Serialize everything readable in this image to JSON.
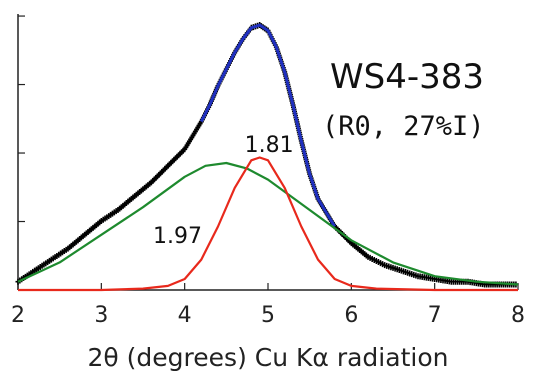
{
  "chart_data": {
    "type": "line",
    "title": "WS4-383",
    "subtitle": "(R0, 27%I)",
    "xlabel": "2θ (degrees) Cu Kα radiation",
    "ylabel": "",
    "xlim": [
      2,
      8
    ],
    "ylim": [
      0,
      1
    ],
    "grid": false,
    "legend": "none",
    "x_ticks": [
      "2",
      "3",
      "4",
      "5",
      "6",
      "7",
      "8"
    ],
    "y_tick_count": 4,
    "series": [
      {
        "color": "#000000",
        "style": "measured points",
        "x": [
          2.0,
          2.2,
          2.4,
          2.6,
          2.8,
          3.0,
          3.2,
          3.4,
          3.6,
          3.8,
          4.0,
          4.1,
          4.2,
          4.3,
          4.4,
          4.5,
          4.6,
          4.7,
          4.8,
          4.9,
          5.0,
          5.1,
          5.2,
          5.3,
          5.4,
          5.5,
          5.6,
          5.8,
          6.0,
          6.2,
          6.4,
          6.6,
          6.8,
          7.0,
          7.2,
          7.4,
          7.6,
          7.8,
          8.0
        ],
        "y": [
          0.03,
          0.07,
          0.11,
          0.15,
          0.2,
          0.25,
          0.29,
          0.34,
          0.39,
          0.45,
          0.51,
          0.56,
          0.61,
          0.67,
          0.74,
          0.8,
          0.86,
          0.91,
          0.95,
          0.96,
          0.94,
          0.88,
          0.79,
          0.67,
          0.54,
          0.42,
          0.33,
          0.23,
          0.17,
          0.12,
          0.09,
          0.07,
          0.05,
          0.04,
          0.03,
          0.03,
          0.02,
          0.02,
          0.02
        ]
      },
      {
        "color": "#1f2fbf",
        "style": "fit",
        "x": [
          4.2,
          4.3,
          4.4,
          4.5,
          4.6,
          4.7,
          4.8,
          4.9,
          5.0,
          5.1,
          5.2,
          5.3,
          5.4,
          5.5,
          5.6,
          5.8
        ],
        "y": [
          0.61,
          0.67,
          0.74,
          0.8,
          0.86,
          0.91,
          0.95,
          0.96,
          0.94,
          0.88,
          0.79,
          0.67,
          0.54,
          0.42,
          0.33,
          0.23
        ]
      },
      {
        "color": "#1e8a2e",
        "style": "component",
        "x": [
          2.0,
          2.5,
          3.0,
          3.5,
          4.0,
          4.25,
          4.5,
          4.75,
          5.0,
          5.5,
          6.0,
          6.5,
          7.0,
          7.5,
          8.0
        ],
        "y": [
          0.03,
          0.1,
          0.2,
          0.3,
          0.41,
          0.45,
          0.46,
          0.44,
          0.4,
          0.29,
          0.18,
          0.1,
          0.05,
          0.03,
          0.02
        ]
      },
      {
        "color": "#e8291c",
        "style": "component",
        "x": [
          2.0,
          3.0,
          3.5,
          3.8,
          4.0,
          4.2,
          4.4,
          4.6,
          4.8,
          4.9,
          5.0,
          5.2,
          5.4,
          5.6,
          5.8,
          6.0,
          6.3,
          7.0,
          8.0
        ],
        "y": [
          0.0,
          0.0,
          0.005,
          0.015,
          0.04,
          0.11,
          0.23,
          0.37,
          0.47,
          0.48,
          0.47,
          0.37,
          0.23,
          0.11,
          0.04,
          0.015,
          0.005,
          0.0,
          0.0
        ]
      }
    ],
    "annotations": [
      {
        "text": "1.81",
        "x": 4.72,
        "y": 0.5
      },
      {
        "text": "1.97",
        "x": 3.62,
        "y": 0.17
      }
    ]
  }
}
